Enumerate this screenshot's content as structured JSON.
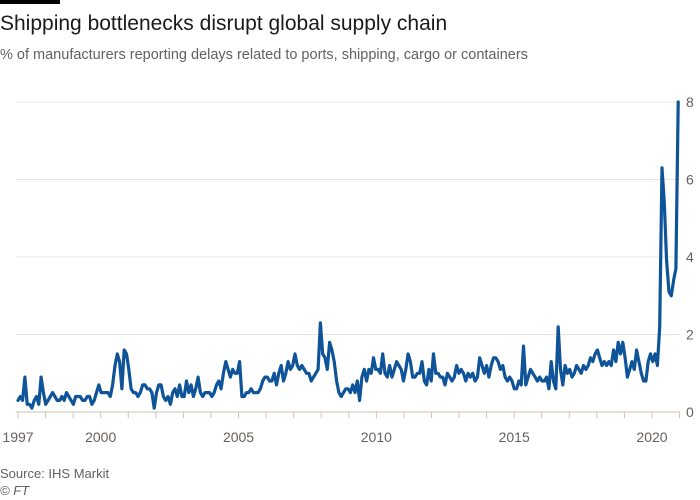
{
  "title": "Shipping bottlenecks disrupt global supply chain",
  "subtitle": "% of manufacturers reporting delays related to ports, shipping, cargo or containers",
  "source": "Source: IHS Markit",
  "copyright": "© FT",
  "colors": {
    "line": "#0f5499",
    "grid": "#e9e4de",
    "axis": "#ccc1b7",
    "text": "#66605c"
  },
  "chart_data": {
    "type": "line",
    "title": "Shipping bottlenecks disrupt global supply chain",
    "ylabel": "% of manufacturers reporting delays related to ports, shipping, cargo or containers",
    "xlabel": "",
    "xlim": [
      1997,
      2021
    ],
    "ylim": [
      0,
      8
    ],
    "y_ticks": [
      "0",
      "2",
      "4",
      "6",
      "8"
    ],
    "y_tick_values": [
      0,
      2,
      4,
      6,
      8
    ],
    "x_ticks": [
      "1997",
      "2000",
      "2005",
      "2010",
      "2015",
      "2020"
    ],
    "x_tick_values": [
      1997,
      2000,
      2005,
      2010,
      2015,
      2020
    ],
    "grid": true,
    "y_axis_side": "right",
    "series": [
      {
        "name": "Delays",
        "x_start": 1997.0,
        "x_step": 0.0833,
        "values": [
          0.3,
          0.4,
          0.3,
          0.9,
          0.2,
          0.2,
          0.1,
          0.3,
          0.4,
          0.2,
          0.9,
          0.5,
          0.2,
          0.3,
          0.4,
          0.5,
          0.4,
          0.3,
          0.3,
          0.4,
          0.3,
          0.5,
          0.4,
          0.3,
          0.2,
          0.4,
          0.4,
          0.4,
          0.3,
          0.3,
          0.4,
          0.4,
          0.2,
          0.3,
          0.5,
          0.7,
          0.5,
          0.5,
          0.5,
          0.5,
          0.4,
          0.7,
          1.2,
          1.5,
          1.3,
          0.6,
          1.6,
          1.5,
          1.1,
          0.6,
          0.5,
          0.5,
          0.4,
          0.5,
          0.7,
          0.7,
          0.6,
          0.6,
          0.5,
          0.1,
          0.5,
          0.7,
          0.7,
          0.4,
          0.3,
          0.4,
          0.2,
          0.5,
          0.6,
          0.4,
          0.7,
          0.4,
          0.4,
          0.8,
          0.5,
          0.7,
          0.4,
          0.6,
          0.9,
          0.5,
          0.4,
          0.5,
          0.5,
          0.5,
          0.4,
          0.5,
          0.7,
          0.8,
          0.6,
          1.0,
          1.3,
          1.1,
          0.9,
          1.1,
          1.0,
          1.0,
          1.3,
          0.4,
          0.4,
          0.5,
          0.5,
          0.6,
          0.5,
          0.5,
          0.5,
          0.6,
          0.8,
          0.9,
          0.9,
          0.8,
          0.8,
          1.0,
          0.7,
          1.0,
          1.2,
          0.8,
          1.0,
          1.3,
          1.1,
          1.2,
          1.5,
          1.2,
          1.1,
          1.2,
          1.1,
          1.0,
          1.0,
          0.8,
          0.9,
          1.0,
          1.1,
          2.3,
          1.5,
          1.4,
          1.1,
          1.8,
          1.6,
          1.3,
          0.8,
          0.5,
          0.4,
          0.5,
          0.6,
          0.6,
          0.5,
          0.7,
          0.5,
          0.8,
          0.3,
          0.9,
          1.1,
          0.8,
          1.1,
          1.0,
          1.4,
          1.1,
          1.1,
          1.0,
          1.5,
          1.0,
          0.9,
          1.2,
          0.9,
          1.1,
          1.3,
          1.2,
          1.1,
          0.8,
          1.1,
          1.5,
          1.3,
          0.9,
          0.9,
          1.0,
          1.0,
          1.3,
          0.8,
          0.7,
          1.1,
          0.8,
          1.5,
          1.0,
          1.0,
          0.9,
          0.9,
          0.7,
          1.0,
          0.9,
          0.8,
          0.9,
          1.2,
          1.0,
          1.1,
          1.0,
          0.8,
          1.0,
          0.9,
          1.0,
          0.8,
          0.9,
          1.4,
          1.2,
          1.0,
          1.2,
          0.9,
          1.2,
          1.4,
          1.4,
          1.3,
          1.1,
          1.2,
          0.9,
          0.8,
          0.9,
          0.8,
          0.6,
          0.6,
          0.8,
          0.7,
          1.7,
          0.7,
          0.9,
          1.1,
          1.0,
          0.9,
          0.8,
          0.9,
          0.8,
          0.8,
          0.9,
          0.6,
          1.3,
          0.8,
          0.6,
          2.2,
          1.1,
          0.7,
          1.2,
          1.0,
          1.1,
          0.9,
          1.0,
          1.2,
          1.1,
          1.0,
          1.2,
          1.1,
          1.2,
          1.4,
          1.3,
          1.5,
          1.6,
          1.4,
          1.2,
          1.3,
          1.2,
          1.3,
          1.2,
          1.6,
          1.3,
          1.8,
          1.5,
          1.8,
          1.4,
          0.9,
          1.1,
          1.3,
          1.1,
          1.6,
          1.3,
          1.0,
          0.8,
          0.8,
          1.3,
          1.5,
          1.3,
          1.5,
          1.2,
          2.2,
          6.3,
          5.4,
          3.9,
          3.1,
          3.0,
          3.4,
          3.7,
          8.0
        ]
      }
    ]
  }
}
